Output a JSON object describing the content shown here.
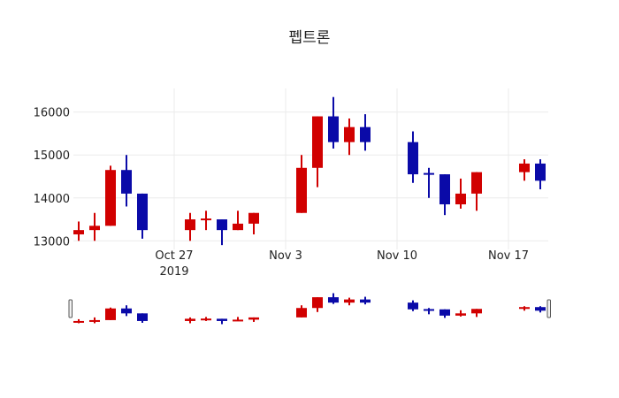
{
  "chart_data": {
    "type": "candlestick",
    "title": "펩트론",
    "xlabel": "",
    "ylabel": "",
    "x_range": [
      "2019-10-20T16:00",
      "2019-11-19T12:00"
    ],
    "ylim": [
      12800,
      16550
    ],
    "yticks": [
      13000,
      14000,
      15000,
      16000
    ],
    "ytick_labels": [
      "13000",
      "14000",
      "15000",
      "16000"
    ],
    "xticks": [
      {
        "date": "2019-10-27",
        "label": "Oct 27",
        "sublabel": "2019"
      },
      {
        "date": "2019-11-03",
        "label": "Nov 3",
        "sublabel": ""
      },
      {
        "date": "2019-11-10",
        "label": "Nov 10",
        "sublabel": ""
      },
      {
        "date": "2019-11-17",
        "label": "Nov 17",
        "sublabel": ""
      }
    ],
    "grid": true,
    "increasing_color": "#d10000",
    "decreasing_color": "#0a0aa8",
    "rangeslider": true,
    "candles": [
      {
        "date": "2019-10-21",
        "open": 13150,
        "high": 13450,
        "low": 13000,
        "close": 13250
      },
      {
        "date": "2019-10-22",
        "open": 13250,
        "high": 13650,
        "low": 13000,
        "close": 13350
      },
      {
        "date": "2019-10-23",
        "open": 13350,
        "high": 14750,
        "low": 13350,
        "close": 14650
      },
      {
        "date": "2019-10-24",
        "open": 14650,
        "high": 15000,
        "low": 13800,
        "close": 14100
      },
      {
        "date": "2019-10-25",
        "open": 14100,
        "high": 14100,
        "low": 13050,
        "close": 13250
      },
      {
        "date": "2019-10-28",
        "open": 13250,
        "high": 13650,
        "low": 13000,
        "close": 13500
      },
      {
        "date": "2019-10-29",
        "open": 13500,
        "high": 13700,
        "low": 13250,
        "close": 13520
      },
      {
        "date": "2019-10-30",
        "open": 13500,
        "high": 13500,
        "low": 12900,
        "close": 13250
      },
      {
        "date": "2019-10-31",
        "open": 13250,
        "high": 13700,
        "low": 13250,
        "close": 13400
      },
      {
        "date": "2019-11-01",
        "open": 13400,
        "high": 13650,
        "low": 13150,
        "close": 13650
      },
      {
        "date": "2019-11-04",
        "open": 13650,
        "high": 15000,
        "low": 13650,
        "close": 14700
      },
      {
        "date": "2019-11-05",
        "open": 14700,
        "high": 15900,
        "low": 14250,
        "close": 15900
      },
      {
        "date": "2019-11-06",
        "open": 15900,
        "high": 16350,
        "low": 15150,
        "close": 15300
      },
      {
        "date": "2019-11-07",
        "open": 15300,
        "high": 15850,
        "low": 15000,
        "close": 15650
      },
      {
        "date": "2019-11-08",
        "open": 15650,
        "high": 15950,
        "low": 15100,
        "close": 15300
      },
      {
        "date": "2019-11-11",
        "open": 15300,
        "high": 15550,
        "low": 14350,
        "close": 14550
      },
      {
        "date": "2019-11-12",
        "open": 14580,
        "high": 14700,
        "low": 14000,
        "close": 14550
      },
      {
        "date": "2019-11-13",
        "open": 14550,
        "high": 14550,
        "low": 13600,
        "close": 13850
      },
      {
        "date": "2019-11-14",
        "open": 13850,
        "high": 14450,
        "low": 13750,
        "close": 14100
      },
      {
        "date": "2019-11-15",
        "open": 14100,
        "high": 14600,
        "low": 13700,
        "close": 14600
      },
      {
        "date": "2019-11-18",
        "open": 14600,
        "high": 14900,
        "low": 14400,
        "close": 14800
      },
      {
        "date": "2019-11-19",
        "open": 14800,
        "high": 14900,
        "low": 14200,
        "close": 14400
      }
    ]
  }
}
